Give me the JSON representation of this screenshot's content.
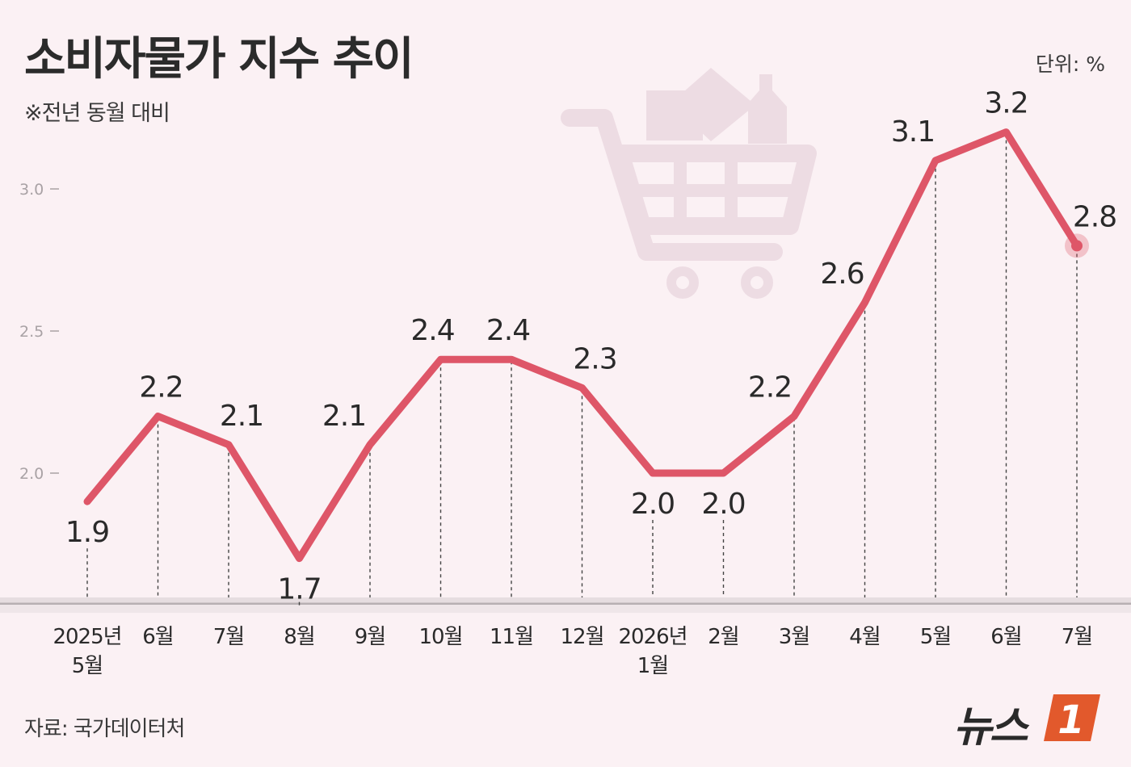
{
  "title": "소비자물가 지수 추이",
  "subtitle": "※전년 동월 대비",
  "unit": "단위:  %",
  "source": "자료: 국가데이터처",
  "brand": {
    "name": "뉴스",
    "badge": "1"
  },
  "colors": {
    "line": "#de5668",
    "background": "#fbf1f4",
    "icon": "#eddce3",
    "baseline": "#b8b0b3"
  },
  "chart_data": {
    "type": "line",
    "categories": [
      [
        "2025년",
        "5월"
      ],
      [
        "6월"
      ],
      [
        "7월"
      ],
      [
        "8월"
      ],
      [
        "9월"
      ],
      [
        "10월"
      ],
      [
        "11월"
      ],
      [
        "12월"
      ],
      [
        "2026년",
        "1월"
      ],
      [
        "2월"
      ],
      [
        "3월"
      ],
      [
        "4월"
      ],
      [
        "5월"
      ],
      [
        "6월"
      ],
      [
        "7월"
      ]
    ],
    "values": [
      1.9,
      2.2,
      2.1,
      1.7,
      2.1,
      2.4,
      2.4,
      2.3,
      2.0,
      2.0,
      2.2,
      2.6,
      3.1,
      3.2,
      2.8
    ],
    "data_labels": [
      "1.9",
      "2.2",
      "2.1",
      "1.7",
      "2.1",
      "2.4",
      "2.4",
      "2.3",
      "2.0",
      "2.0",
      "2.2",
      "2.6",
      "3.1",
      "3.2",
      "2.8"
    ],
    "yticks": [
      {
        "value": 2.0,
        "label": "2.0"
      },
      {
        "value": 2.5,
        "label": "2.5"
      },
      {
        "value": 3.0,
        "label": "3.0"
      }
    ],
    "grid": false,
    "legend": "none",
    "background_icon": "shopping-cart-icon"
  }
}
